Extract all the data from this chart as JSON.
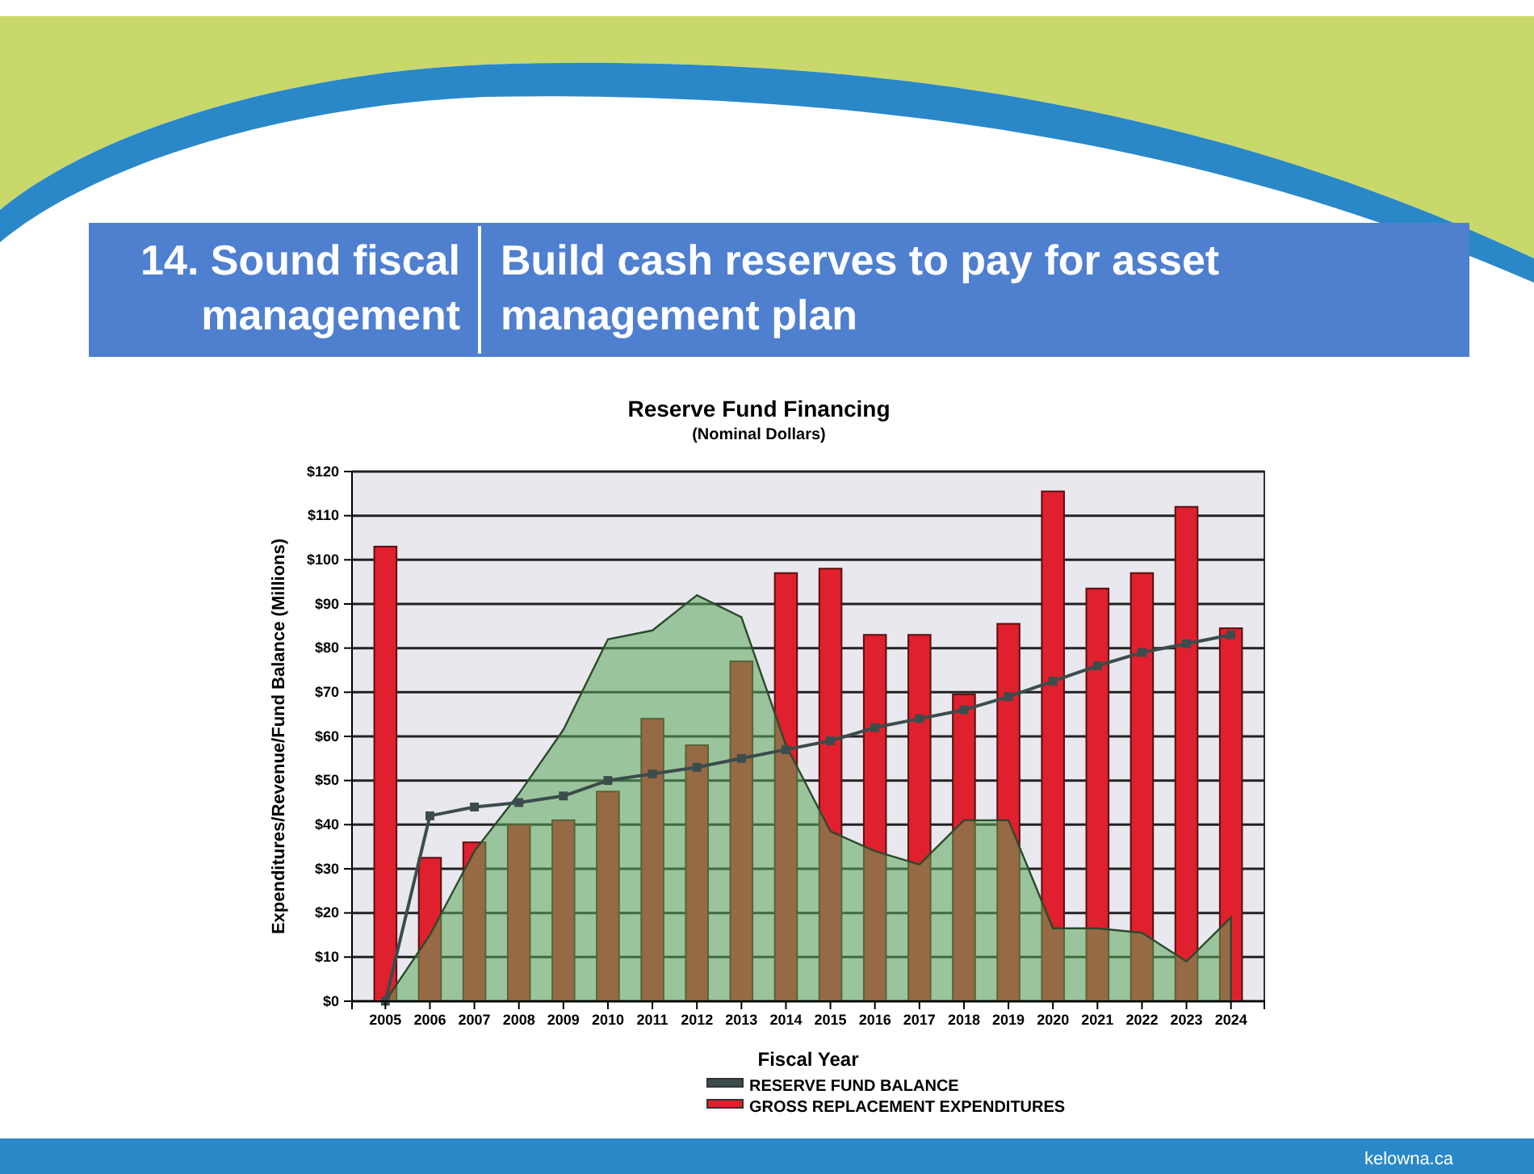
{
  "chart_data": {
    "type": "bar",
    "title": "Reserve Fund Financing",
    "subtitle": "(Nominal Dollars)",
    "xlabel": "Fiscal Year",
    "ylabel": "Expenditures/Revenue/Fund Balance (Millions)",
    "annotations": [
      "14. Sound fiscal management",
      "Build cash reserves to pay for asset management plan",
      "kelowna.ca"
    ],
    "categories": [
      "2005",
      "2006",
      "2007",
      "2008",
      "2009",
      "2010",
      "2011",
      "2012",
      "2013",
      "2014",
      "2015",
      "2016",
      "2017",
      "2018",
      "2019",
      "2020",
      "2021",
      "2022",
      "2023",
      "2024"
    ],
    "series": [
      {
        "type": "area",
        "color": "#5aa85a",
        "values": [
          0,
          15,
          34,
          47,
          61.5,
          82,
          84,
          92,
          87,
          58,
          38.5,
          34,
          31,
          41,
          41,
          16.5,
          16.5,
          15.5,
          9,
          19
        ]
      },
      {
        "type": "line",
        "name": "RESERVE FUND BALANCE",
        "color": "#3c4c4c",
        "marker": "square",
        "values": [
          0,
          42,
          44,
          45,
          46.5,
          50,
          51.5,
          53,
          55,
          57,
          59,
          62,
          64,
          66,
          69,
          72.5,
          76,
          79,
          81,
          83
        ]
      },
      {
        "name": "GROSS REPLACEMENT EXPENDITURES",
        "color": "#e0202e",
        "values": [
          103,
          32.5,
          36,
          40,
          41,
          47.5,
          64,
          58,
          77,
          97,
          98,
          83,
          83,
          69.5,
          85.5,
          115.5,
          93.5,
          97,
          112,
          84.5
        ]
      }
    ],
    "ylim": [
      0,
      120
    ],
    "yticks": [
      {
        "value": 0,
        "label": "$0"
      },
      {
        "value": 10,
        "label": "$10"
      },
      {
        "value": 20,
        "label": "$20"
      },
      {
        "value": 30,
        "label": "$30"
      },
      {
        "value": 40,
        "label": "$40"
      },
      {
        "value": 50,
        "label": "$50"
      },
      {
        "value": 60,
        "label": "$60"
      },
      {
        "value": 70,
        "label": "$70"
      },
      {
        "value": 80,
        "label": "$80"
      },
      {
        "value": 90,
        "label": "$90"
      },
      {
        "value": 100,
        "label": "$100"
      },
      {
        "value": 110,
        "label": "$110"
      },
      {
        "value": 120,
        "label": "$120"
      }
    ],
    "grid": "y",
    "legend": "bottom"
  }
}
